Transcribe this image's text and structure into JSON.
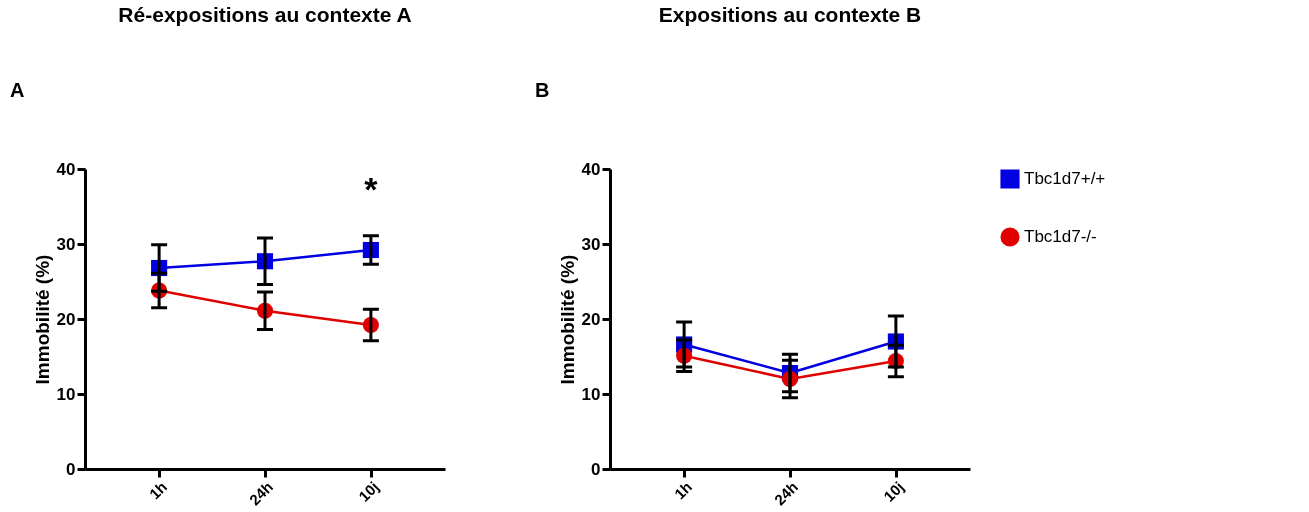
{
  "chart_data": [
    {
      "type": "line",
      "title": "Ré-expositions au contexte A",
      "ylabel": "Immobilité (%)",
      "categories": [
        "1h",
        "24h",
        "10j"
      ],
      "ylim": [
        0,
        40
      ],
      "yticks": [
        0,
        10,
        20,
        30,
        40
      ],
      "grid": false,
      "legend": "right",
      "series": [
        {
          "name": "Tbc1d7+/+",
          "color": "#0000e0",
          "marker": "square",
          "values": [
            26.8,
            27.7,
            29.2
          ],
          "errors": [
            3.1,
            3.1,
            1.9
          ]
        },
        {
          "name": "Tbc1d7-/-",
          "color": "#e00000",
          "marker": "circle",
          "values": [
            23.8,
            21.1,
            19.2
          ],
          "errors": [
            2.3,
            2.5,
            2.1
          ]
        }
      ],
      "annotations": [
        "A",
        "*"
      ]
    },
    {
      "type": "line",
      "title": "Expositions au contexte B",
      "ylabel": "Immobilité (%)",
      "categories": [
        "1h",
        "24h",
        "10j"
      ],
      "ylim": [
        0,
        40
      ],
      "yticks": [
        0,
        10,
        20,
        30,
        40
      ],
      "grid": false,
      "legend": "right",
      "series": [
        {
          "name": "Tbc1d7+/+",
          "color": "#0000e0",
          "marker": "square",
          "values": [
            16.6,
            12.8,
            17.0
          ],
          "errors": [
            3.0,
            2.5,
            3.4
          ]
        },
        {
          "name": "Tbc1d7-/-",
          "color": "#e00000",
          "marker": "circle",
          "values": [
            15.1,
            12.0,
            14.4
          ],
          "errors": [
            2.1,
            2.5,
            2.1
          ]
        }
      ],
      "annotations": [
        "B"
      ]
    }
  ]
}
